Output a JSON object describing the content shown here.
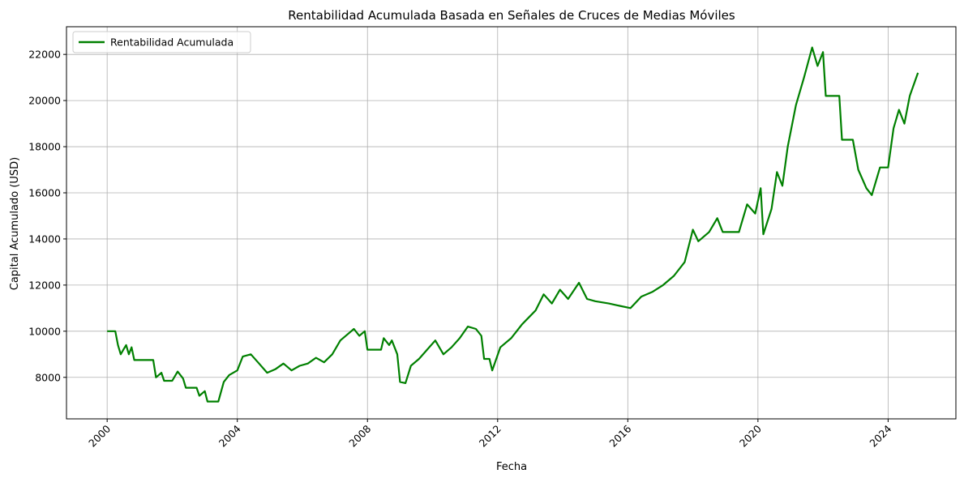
{
  "chart_data": {
    "type": "line",
    "title": "Rentabilidad Acumulada Basada en Señales de Cruces de Medias Móviles",
    "xlabel": "Fecha",
    "ylabel": "Capital Acumulado (USD)",
    "x_ticks": [
      "2000",
      "2004",
      "2008",
      "2012",
      "2016",
      "2020",
      "2024"
    ],
    "y_ticks": [
      "8000",
      "10000",
      "12000",
      "14000",
      "16000",
      "18000",
      "20000",
      "22000"
    ],
    "xlim": [
      "1998-10-01",
      "2026-02-01"
    ],
    "ylim": [
      6200,
      23200
    ],
    "grid": true,
    "legend_position": "top-left",
    "line_color": "#008000",
    "series": [
      {
        "name": "Rentabilidad Acumulada",
        "color": "#008000",
        "points": [
          [
            "2000-01-01",
            10000
          ],
          [
            "2000-04-01",
            10000
          ],
          [
            "2000-05-01",
            9400
          ],
          [
            "2000-06-01",
            9000
          ],
          [
            "2000-07-01",
            9200
          ],
          [
            "2000-08-01",
            9400
          ],
          [
            "2000-09-01",
            9000
          ],
          [
            "2000-10-01",
            9300
          ],
          [
            "2000-11-01",
            8750
          ],
          [
            "2001-06-01",
            8750
          ],
          [
            "2001-07-01",
            8000
          ],
          [
            "2001-09-01",
            8200
          ],
          [
            "2001-10-01",
            7850
          ],
          [
            "2002-01-01",
            7850
          ],
          [
            "2002-03-01",
            8250
          ],
          [
            "2002-05-01",
            7950
          ],
          [
            "2002-06-01",
            7550
          ],
          [
            "2002-10-01",
            7550
          ],
          [
            "2002-11-01",
            7200
          ],
          [
            "2003-01-01",
            7400
          ],
          [
            "2003-02-01",
            6950
          ],
          [
            "2003-06-01",
            6950
          ],
          [
            "2003-08-01",
            7800
          ],
          [
            "2003-10-01",
            8100
          ],
          [
            "2004-01-01",
            8300
          ],
          [
            "2004-03-01",
            8900
          ],
          [
            "2004-06-01",
            9000
          ],
          [
            "2004-09-01",
            8600
          ],
          [
            "2004-12-01",
            8200
          ],
          [
            "2005-03-01",
            8350
          ],
          [
            "2005-06-01",
            8600
          ],
          [
            "2005-09-01",
            8300
          ],
          [
            "2005-12-01",
            8500
          ],
          [
            "2006-03-01",
            8600
          ],
          [
            "2006-06-01",
            8850
          ],
          [
            "2006-09-01",
            8650
          ],
          [
            "2006-12-01",
            9000
          ],
          [
            "2007-03-01",
            9600
          ],
          [
            "2007-06-01",
            9900
          ],
          [
            "2007-08-01",
            10100
          ],
          [
            "2007-10-01",
            9800
          ],
          [
            "2007-12-01",
            10000
          ],
          [
            "2008-01-01",
            9200
          ],
          [
            "2008-06-01",
            9200
          ],
          [
            "2008-07-01",
            9700
          ],
          [
            "2008-09-01",
            9400
          ],
          [
            "2008-10-01",
            9600
          ],
          [
            "2008-12-01",
            9000
          ],
          [
            "2009-01-01",
            7800
          ],
          [
            "2009-03-01",
            7750
          ],
          [
            "2009-05-01",
            8500
          ],
          [
            "2009-08-01",
            8800
          ],
          [
            "2009-11-01",
            9200
          ],
          [
            "2010-02-01",
            9600
          ],
          [
            "2010-05-01",
            9000
          ],
          [
            "2010-08-01",
            9300
          ],
          [
            "2010-11-01",
            9700
          ],
          [
            "2011-02-01",
            10200
          ],
          [
            "2011-05-01",
            10100
          ],
          [
            "2011-07-01",
            9800
          ],
          [
            "2011-08-01",
            8800
          ],
          [
            "2011-10-01",
            8800
          ],
          [
            "2011-11-01",
            8300
          ],
          [
            "2012-02-01",
            9300
          ],
          [
            "2012-06-01",
            9700
          ],
          [
            "2012-10-01",
            10300
          ],
          [
            "2013-03-01",
            10900
          ],
          [
            "2013-06-01",
            11600
          ],
          [
            "2013-09-01",
            11200
          ],
          [
            "2013-12-01",
            11800
          ],
          [
            "2014-03-01",
            11400
          ],
          [
            "2014-07-01",
            12100
          ],
          [
            "2014-10-01",
            11400
          ],
          [
            "2015-01-01",
            11300
          ],
          [
            "2015-06-01",
            11200
          ],
          [
            "2015-10-01",
            11100
          ],
          [
            "2016-02-01",
            11000
          ],
          [
            "2016-06-01",
            11500
          ],
          [
            "2016-10-01",
            11700
          ],
          [
            "2017-02-01",
            12000
          ],
          [
            "2017-06-01",
            12400
          ],
          [
            "2017-10-01",
            13000
          ],
          [
            "2018-01-01",
            14400
          ],
          [
            "2018-03-01",
            13900
          ],
          [
            "2018-07-01",
            14300
          ],
          [
            "2018-10-01",
            14900
          ],
          [
            "2018-12-01",
            14300
          ],
          [
            "2019-06-01",
            14300
          ],
          [
            "2019-09-01",
            15500
          ],
          [
            "2019-12-01",
            15100
          ],
          [
            "2020-02-01",
            16200
          ],
          [
            "2020-03-01",
            14200
          ],
          [
            "2020-06-01",
            15300
          ],
          [
            "2020-08-01",
            16900
          ],
          [
            "2020-10-01",
            16300
          ],
          [
            "2020-12-01",
            18000
          ],
          [
            "2021-03-01",
            19800
          ],
          [
            "2021-06-01",
            21000
          ],
          [
            "2021-09-01",
            22300
          ],
          [
            "2021-11-01",
            21500
          ],
          [
            "2022-01-01",
            22100
          ],
          [
            "2022-02-01",
            20200
          ],
          [
            "2022-07-01",
            20200
          ],
          [
            "2022-08-01",
            18300
          ],
          [
            "2022-12-01",
            18300
          ],
          [
            "2023-02-01",
            17000
          ],
          [
            "2023-05-01",
            16200
          ],
          [
            "2023-07-01",
            15900
          ],
          [
            "2023-10-01",
            17100
          ],
          [
            "2024-01-01",
            17100
          ],
          [
            "2024-03-01",
            18800
          ],
          [
            "2024-05-01",
            19600
          ],
          [
            "2024-07-01",
            19000
          ],
          [
            "2024-09-01",
            20200
          ],
          [
            "2024-12-01",
            21200
          ]
        ]
      }
    ]
  }
}
